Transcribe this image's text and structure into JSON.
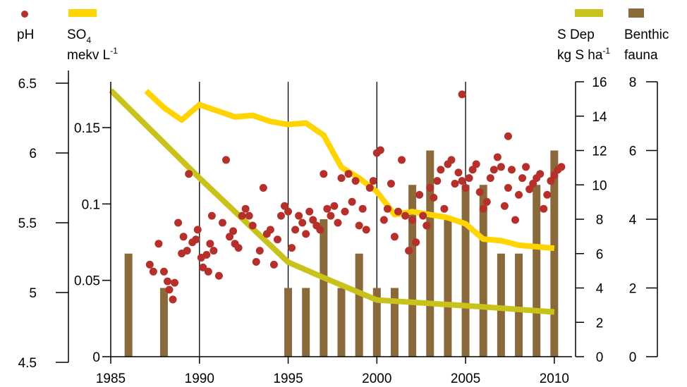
{
  "chart_data": {
    "type": "combo",
    "title": "",
    "x": {
      "label": "",
      "range": [
        1985,
        2011
      ],
      "ticks": [
        1985,
        1990,
        1995,
        2000,
        2005,
        2010
      ],
      "tick_labels": [
        "1985",
        "1990",
        "1995",
        "2000",
        "2005",
        "2010"
      ],
      "vertical_gridlines": [
        1990,
        1995,
        2000,
        2005
      ]
    },
    "axes": {
      "ph": {
        "range": [
          4.5,
          6.5
        ],
        "ticks": [
          "4.5",
          "5",
          "5.5",
          "6",
          "6.5"
        ]
      },
      "so4": {
        "range": [
          0,
          0.18
        ],
        "ticks": [
          "0",
          "0.05",
          "0.1",
          "0.15"
        ]
      },
      "sdep": {
        "range": [
          0,
          16
        ],
        "ticks": [
          "0",
          "2",
          "4",
          "6",
          "8",
          "10",
          "12",
          "14",
          "16"
        ]
      },
      "benthic": {
        "range": [
          0,
          8
        ],
        "ticks": [
          "0",
          "2",
          "4",
          "6",
          "8"
        ]
      }
    },
    "legend": {
      "ph": {
        "label": "pH",
        "color": "#b5302a"
      },
      "so4": {
        "label": "SO",
        "subscript": "4",
        "unit_base": "mekv L",
        "unit_sup": "-1",
        "color": "#ffd400"
      },
      "sdep": {
        "label": "S Dep",
        "unit_base": "kg S ha",
        "unit_sup": "-1",
        "color": "#c9c21a"
      },
      "benthic": {
        "label": "Benthic",
        "label2": "fauna",
        "color": "#8a6a3a"
      }
    },
    "series": {
      "benthic_bars": {
        "axis": "benthic",
        "x": [
          1986,
          1988,
          1995,
          1996,
          1997,
          1998,
          1999,
          2000,
          2001,
          2002,
          2003,
          2004,
          2005,
          2006,
          2007,
          2008,
          2009,
          2010
        ],
        "y": [
          3,
          2,
          2,
          2,
          4,
          2,
          3,
          2,
          2,
          5,
          6,
          4,
          5,
          5,
          3,
          3,
          5,
          6
        ]
      },
      "so4_line": {
        "axis": "so4",
        "x": [
          1987,
          1988,
          1989,
          1990,
          1991,
          1992,
          1993,
          1994,
          1995,
          1996,
          1997,
          1998,
          1999,
          2000,
          2001,
          2002,
          2003,
          2004,
          2005,
          2006,
          2007,
          2008,
          2009,
          2010
        ],
        "y": [
          0.174,
          0.163,
          0.155,
          0.165,
          0.161,
          0.157,
          0.158,
          0.154,
          0.152,
          0.153,
          0.145,
          0.124,
          0.117,
          0.108,
          0.093,
          0.095,
          0.093,
          0.091,
          0.087,
          0.077,
          0.076,
          0.073,
          0.072,
          0.071
        ]
      },
      "sdep_line": {
        "axis": "sdep",
        "x": [
          1985,
          1990,
          1995,
          1997,
          2000,
          2003,
          2006,
          2010
        ],
        "y": [
          15.5,
          10.4,
          5.5,
          4.6,
          3.3,
          3.1,
          2.9,
          2.6
        ]
      },
      "ph_points": {
        "axis": "ph",
        "x": [
          1987.2,
          1987.4,
          1987.7,
          1988.0,
          1988.2,
          1988.3,
          1988.5,
          1988.6,
          1988.8,
          1989.0,
          1989.1,
          1989.3,
          1989.4,
          1989.6,
          1989.8,
          1989.9,
          1990.1,
          1990.2,
          1990.4,
          1990.5,
          1990.7,
          1990.8,
          1990.6,
          1991.1,
          1991.3,
          1991.5,
          1991.7,
          1991.9,
          1992.0,
          1992.2,
          1992.4,
          1992.6,
          1992.8,
          1993.0,
          1993.2,
          1993.4,
          1993.6,
          1993.8,
          1994.0,
          1994.2,
          1994.4,
          1994.6,
          1994.8,
          1995.0,
          1995.2,
          1995.4,
          1995.6,
          1995.8,
          1996.0,
          1996.2,
          1996.4,
          1996.6,
          1996.8,
          1997.0,
          1997.2,
          1997.4,
          1997.6,
          1997.8,
          1998.0,
          1998.2,
          1998.4,
          1998.6,
          1998.8,
          1999.0,
          1999.2,
          1999.4,
          1999.6,
          1999.8,
          2000.0,
          2000.2,
          2000.4,
          2000.6,
          2000.8,
          2001.0,
          2001.2,
          2001.4,
          2001.6,
          2001.8,
          2002.0,
          2002.2,
          2002.4,
          2002.6,
          2002.8,
          2003.0,
          2003.2,
          2003.4,
          2003.6,
          2003.8,
          2004.0,
          2004.2,
          2004.4,
          2004.6,
          2004.8,
          2005.0,
          2005.2,
          2005.4,
          2005.6,
          2005.8,
          2006.0,
          2006.2,
          2006.4,
          2006.6,
          2006.8,
          2007.0,
          2007.2,
          2007.4,
          2007.6,
          2007.8,
          2008.0,
          2008.2,
          2008.4,
          2008.6,
          2008.8,
          2009.0,
          2009.2,
          2009.4,
          2009.6,
          2009.8,
          2010.0,
          2010.2,
          2010.4,
          2004.8,
          2007.4
        ],
        "y": [
          5.2,
          5.15,
          5.35,
          5.15,
          5.08,
          5.02,
          4.95,
          5.07,
          5.5,
          5.28,
          5.4,
          5.3,
          5.85,
          5.36,
          5.38,
          5.45,
          5.25,
          5.18,
          5.27,
          5.15,
          5.55,
          5.3,
          5.35,
          5.12,
          5.5,
          5.95,
          5.4,
          5.44,
          5.35,
          5.32,
          5.55,
          5.6,
          5.55,
          5.48,
          5.22,
          5.3,
          5.75,
          5.42,
          5.45,
          5.2,
          5.38,
          5.55,
          5.62,
          5.58,
          5.32,
          5.45,
          5.55,
          5.5,
          5.42,
          5.58,
          5.52,
          5.48,
          5.45,
          5.85,
          5.6,
          5.55,
          5.62,
          5.5,
          5.82,
          5.58,
          5.85,
          5.65,
          5.8,
          5.48,
          5.6,
          5.45,
          5.75,
          5.8,
          6.0,
          6.02,
          5.52,
          5.6,
          5.78,
          5.4,
          5.58,
          5.95,
          5.55,
          5.3,
          5.52,
          5.36,
          5.7,
          5.55,
          5.48,
          5.75,
          5.68,
          5.8,
          5.88,
          5.6,
          5.92,
          5.95,
          5.78,
          5.86,
          5.8,
          5.75,
          5.82,
          5.88,
          5.92,
          5.72,
          5.6,
          5.65,
          5.82,
          5.88,
          5.97,
          5.9,
          5.62,
          5.75,
          5.88,
          5.52,
          5.7,
          5.82,
          5.9,
          5.74,
          5.78,
          5.82,
          5.85,
          5.6,
          5.7,
          5.8,
          5.84,
          5.88,
          5.9,
          6.42,
          6.12
        ]
      }
    }
  }
}
